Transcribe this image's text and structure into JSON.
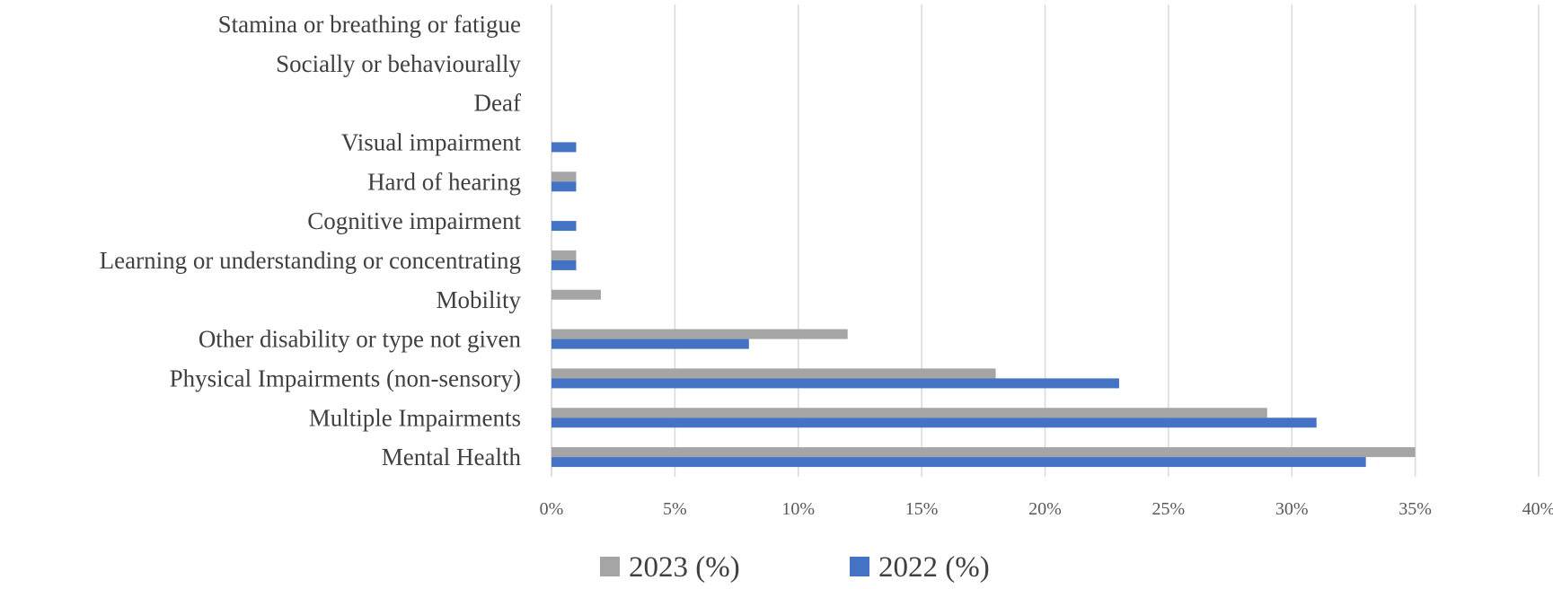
{
  "chart_data": {
    "type": "bar",
    "orientation": "horizontal",
    "title": "",
    "xlabel": "",
    "ylabel": "",
    "categories": [
      "Mental Health",
      "Multiple Impairments",
      "Physical Impairments (non-sensory)",
      "Other disability or type not given",
      "Mobility",
      "Learning or understanding or concentrating",
      "Cognitive impairment",
      "Hard of hearing",
      "Visual impairment",
      "Deaf",
      "Socially or behaviourally",
      "Stamina or breathing or fatigue"
    ],
    "series": [
      {
        "name": "2023 (%)",
        "color": "#a5a5a5",
        "values": [
          35,
          29,
          18,
          12,
          2,
          1,
          0,
          1,
          0,
          0,
          0,
          0
        ]
      },
      {
        "name": "2022 (%)",
        "color": "#4472c4",
        "values": [
          33,
          31,
          23,
          8,
          0,
          1,
          1,
          1,
          1,
          0,
          0,
          0
        ]
      }
    ],
    "xlim": [
      0,
      40
    ],
    "xticks": [
      0,
      5,
      10,
      15,
      20,
      25,
      30,
      35,
      40
    ],
    "tick_suffix": "%",
    "grid": true,
    "gridline_color": "#d9d9d9",
    "legend_position": "bottom"
  }
}
